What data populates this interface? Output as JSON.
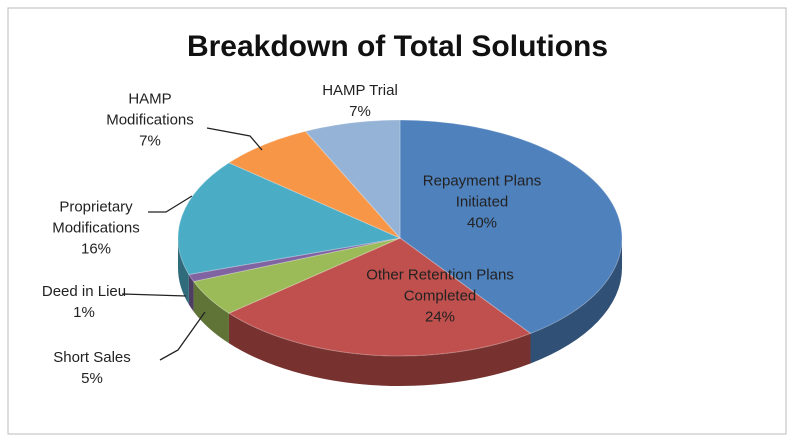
{
  "chart_data": {
    "type": "pie3d",
    "title": "Breakdown of Total Solutions",
    "categories": [
      "Repayment Plans Initiated",
      "Other Retention Plans Completed",
      "Short Sales",
      "Deed in Lieu",
      "Proprietary Modifications",
      "HAMP Modifications",
      "HAMP Trial"
    ],
    "values": [
      40,
      24,
      5,
      1,
      16,
      7,
      7
    ],
    "value_labels": [
      "40%",
      "24%",
      "5%",
      "1%",
      "16%",
      "7%",
      "7%"
    ],
    "colors": [
      "#4f81bd",
      "#c0504d",
      "#9bbb59",
      "#8064a2",
      "#4bacc6",
      "#f79646",
      "#95b3d7"
    ]
  }
}
